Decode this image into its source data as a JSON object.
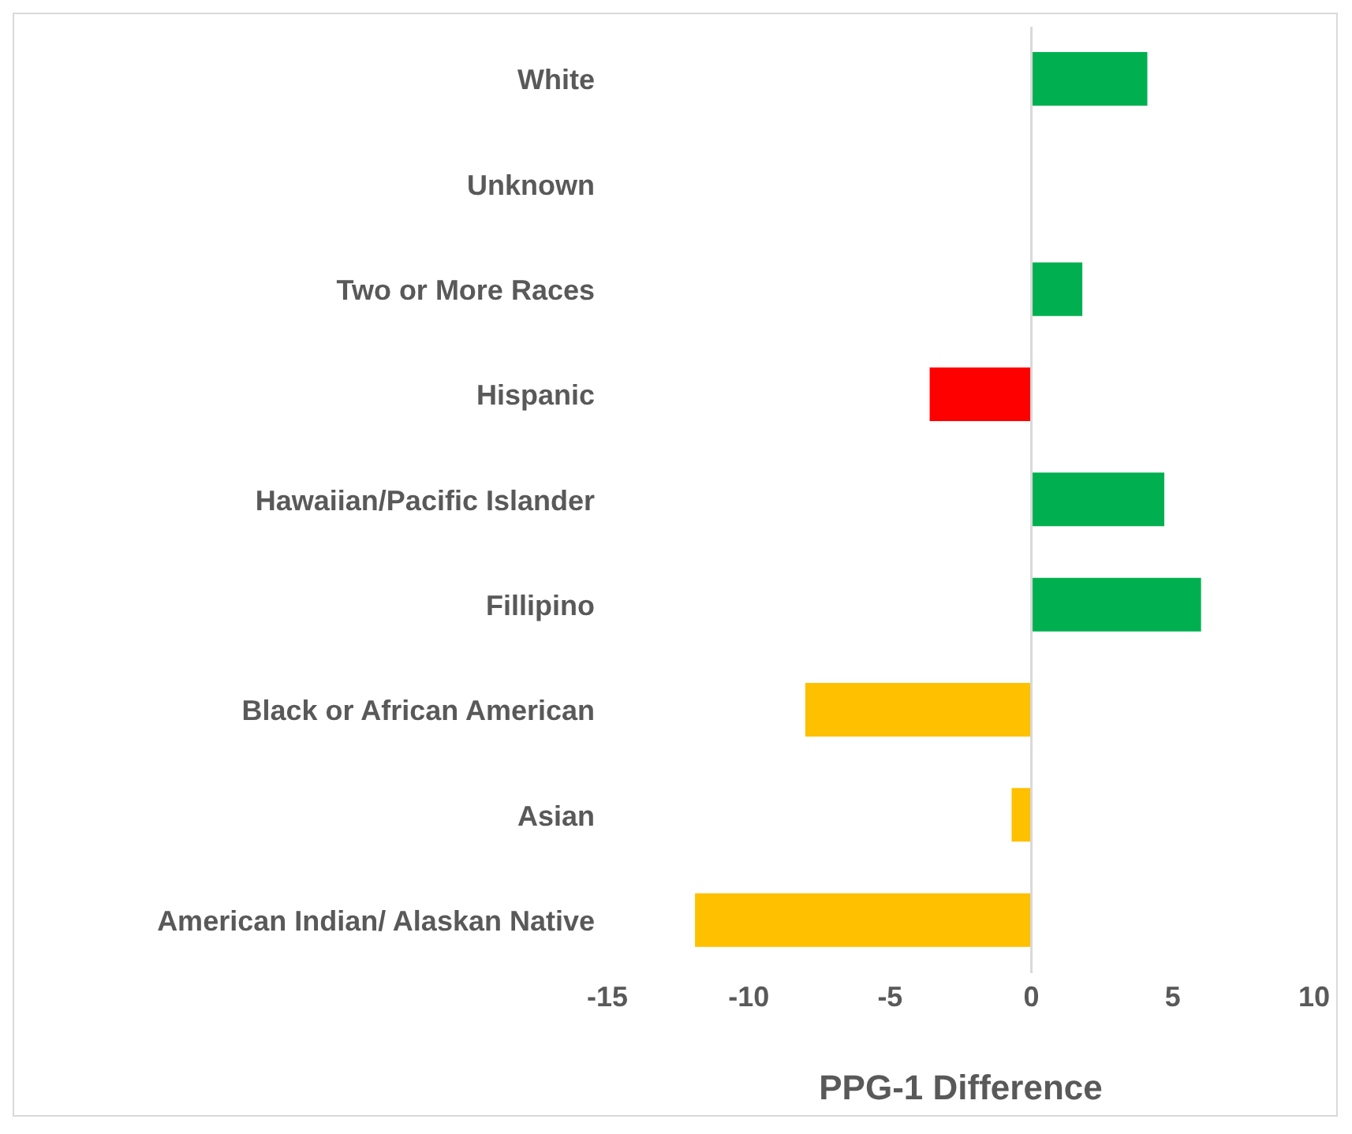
{
  "chart_data": {
    "type": "bar",
    "orientation": "horizontal",
    "xlabel": "PPG-1 Difference",
    "categories": [
      "White",
      "Unknown",
      "Two or More Races",
      "Hispanic",
      "Hawaiian/Pacific Islander",
      "Fillipino",
      "Black or African American",
      "Asian",
      "American Indian/ Alaskan Native"
    ],
    "values": [
      4.1,
      null,
      1.8,
      -3.6,
      4.7,
      6.0,
      -8.0,
      -0.7,
      -11.9
    ],
    "colors": [
      "#00b050",
      "#00b050",
      "#00b050",
      "#ff0000",
      "#00b050",
      "#00b050",
      "#ffc000",
      "#ffc000",
      "#ffc000"
    ],
    "xlim": [
      -15,
      10
    ],
    "xticks": [
      -15,
      -10,
      -5,
      0,
      5,
      10
    ],
    "ref_lines": [
      {
        "axis": "x",
        "value": 0,
        "color": "#d9d9d9"
      }
    ],
    "legend": false
  }
}
